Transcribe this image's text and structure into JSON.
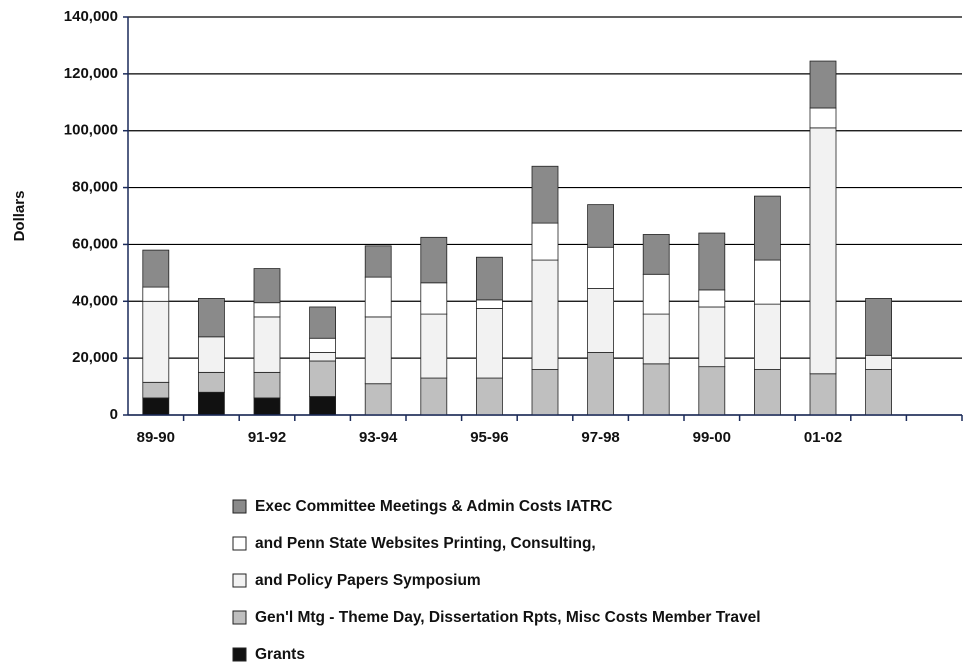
{
  "chart_data": {
    "type": "stacked_bar",
    "ylabel": "Dollars",
    "categories": [
      "89-90",
      null,
      "91-92",
      null,
      "93-94",
      null,
      "95-96",
      null,
      "97-98",
      null,
      "99-00",
      null,
      "01-02",
      null,
      null
    ],
    "series": [
      {
        "name": "Exec Committee Meetings & Admin Costs IATRC",
        "color": "#8a8a8a",
        "values": [
          13000,
          13500,
          12000,
          11000,
          11000,
          16000,
          15000,
          20000,
          15000,
          14000,
          20000,
          22500,
          16500,
          20000,
          null
        ]
      },
      {
        "name": "and Penn State Websites Printing, Consulting,",
        "color": "#ffffff",
        "values": [
          5000,
          0,
          5000,
          5000,
          14000,
          11000,
          3000,
          13000,
          14500,
          14000,
          6000,
          15500,
          7000,
          0,
          null
        ]
      },
      {
        "name": "and Policy Papers Symposium",
        "color": "#f2f2f2",
        "values": [
          28500,
          12500,
          19500,
          3000,
          23500,
          22500,
          24500,
          38500,
          22500,
          17500,
          21000,
          23000,
          86500,
          5000,
          null
        ]
      },
      {
        "name": "Gen'l Mtg - Theme Day, Dissertation Rpts, Misc Costs Member Travel",
        "color": "#bfbfbf",
        "values": [
          5500,
          7000,
          9000,
          12500,
          11000,
          13000,
          13000,
          16000,
          22000,
          18000,
          17000,
          16000,
          14500,
          16000,
          null
        ]
      },
      {
        "name": "Grants",
        "color": "#111111",
        "values": [
          6000,
          8000,
          6000,
          6500,
          0,
          0,
          0,
          0,
          0,
          0,
          0,
          0,
          0,
          0,
          null
        ]
      }
    ],
    "ylim": [
      0,
      140000
    ],
    "yticks": [
      {
        "value": 0,
        "label": "0"
      },
      {
        "value": 20000,
        "label": "20,000"
      },
      {
        "value": 40000,
        "label": "40,000"
      },
      {
        "value": 60000,
        "label": "60,000"
      },
      {
        "value": 80000,
        "label": "80,000"
      },
      {
        "value": 100000,
        "label": "100,000"
      },
      {
        "value": 120000,
        "label": "120,000"
      },
      {
        "value": 140000,
        "label": "140,000"
      }
    ],
    "grid": true
  }
}
